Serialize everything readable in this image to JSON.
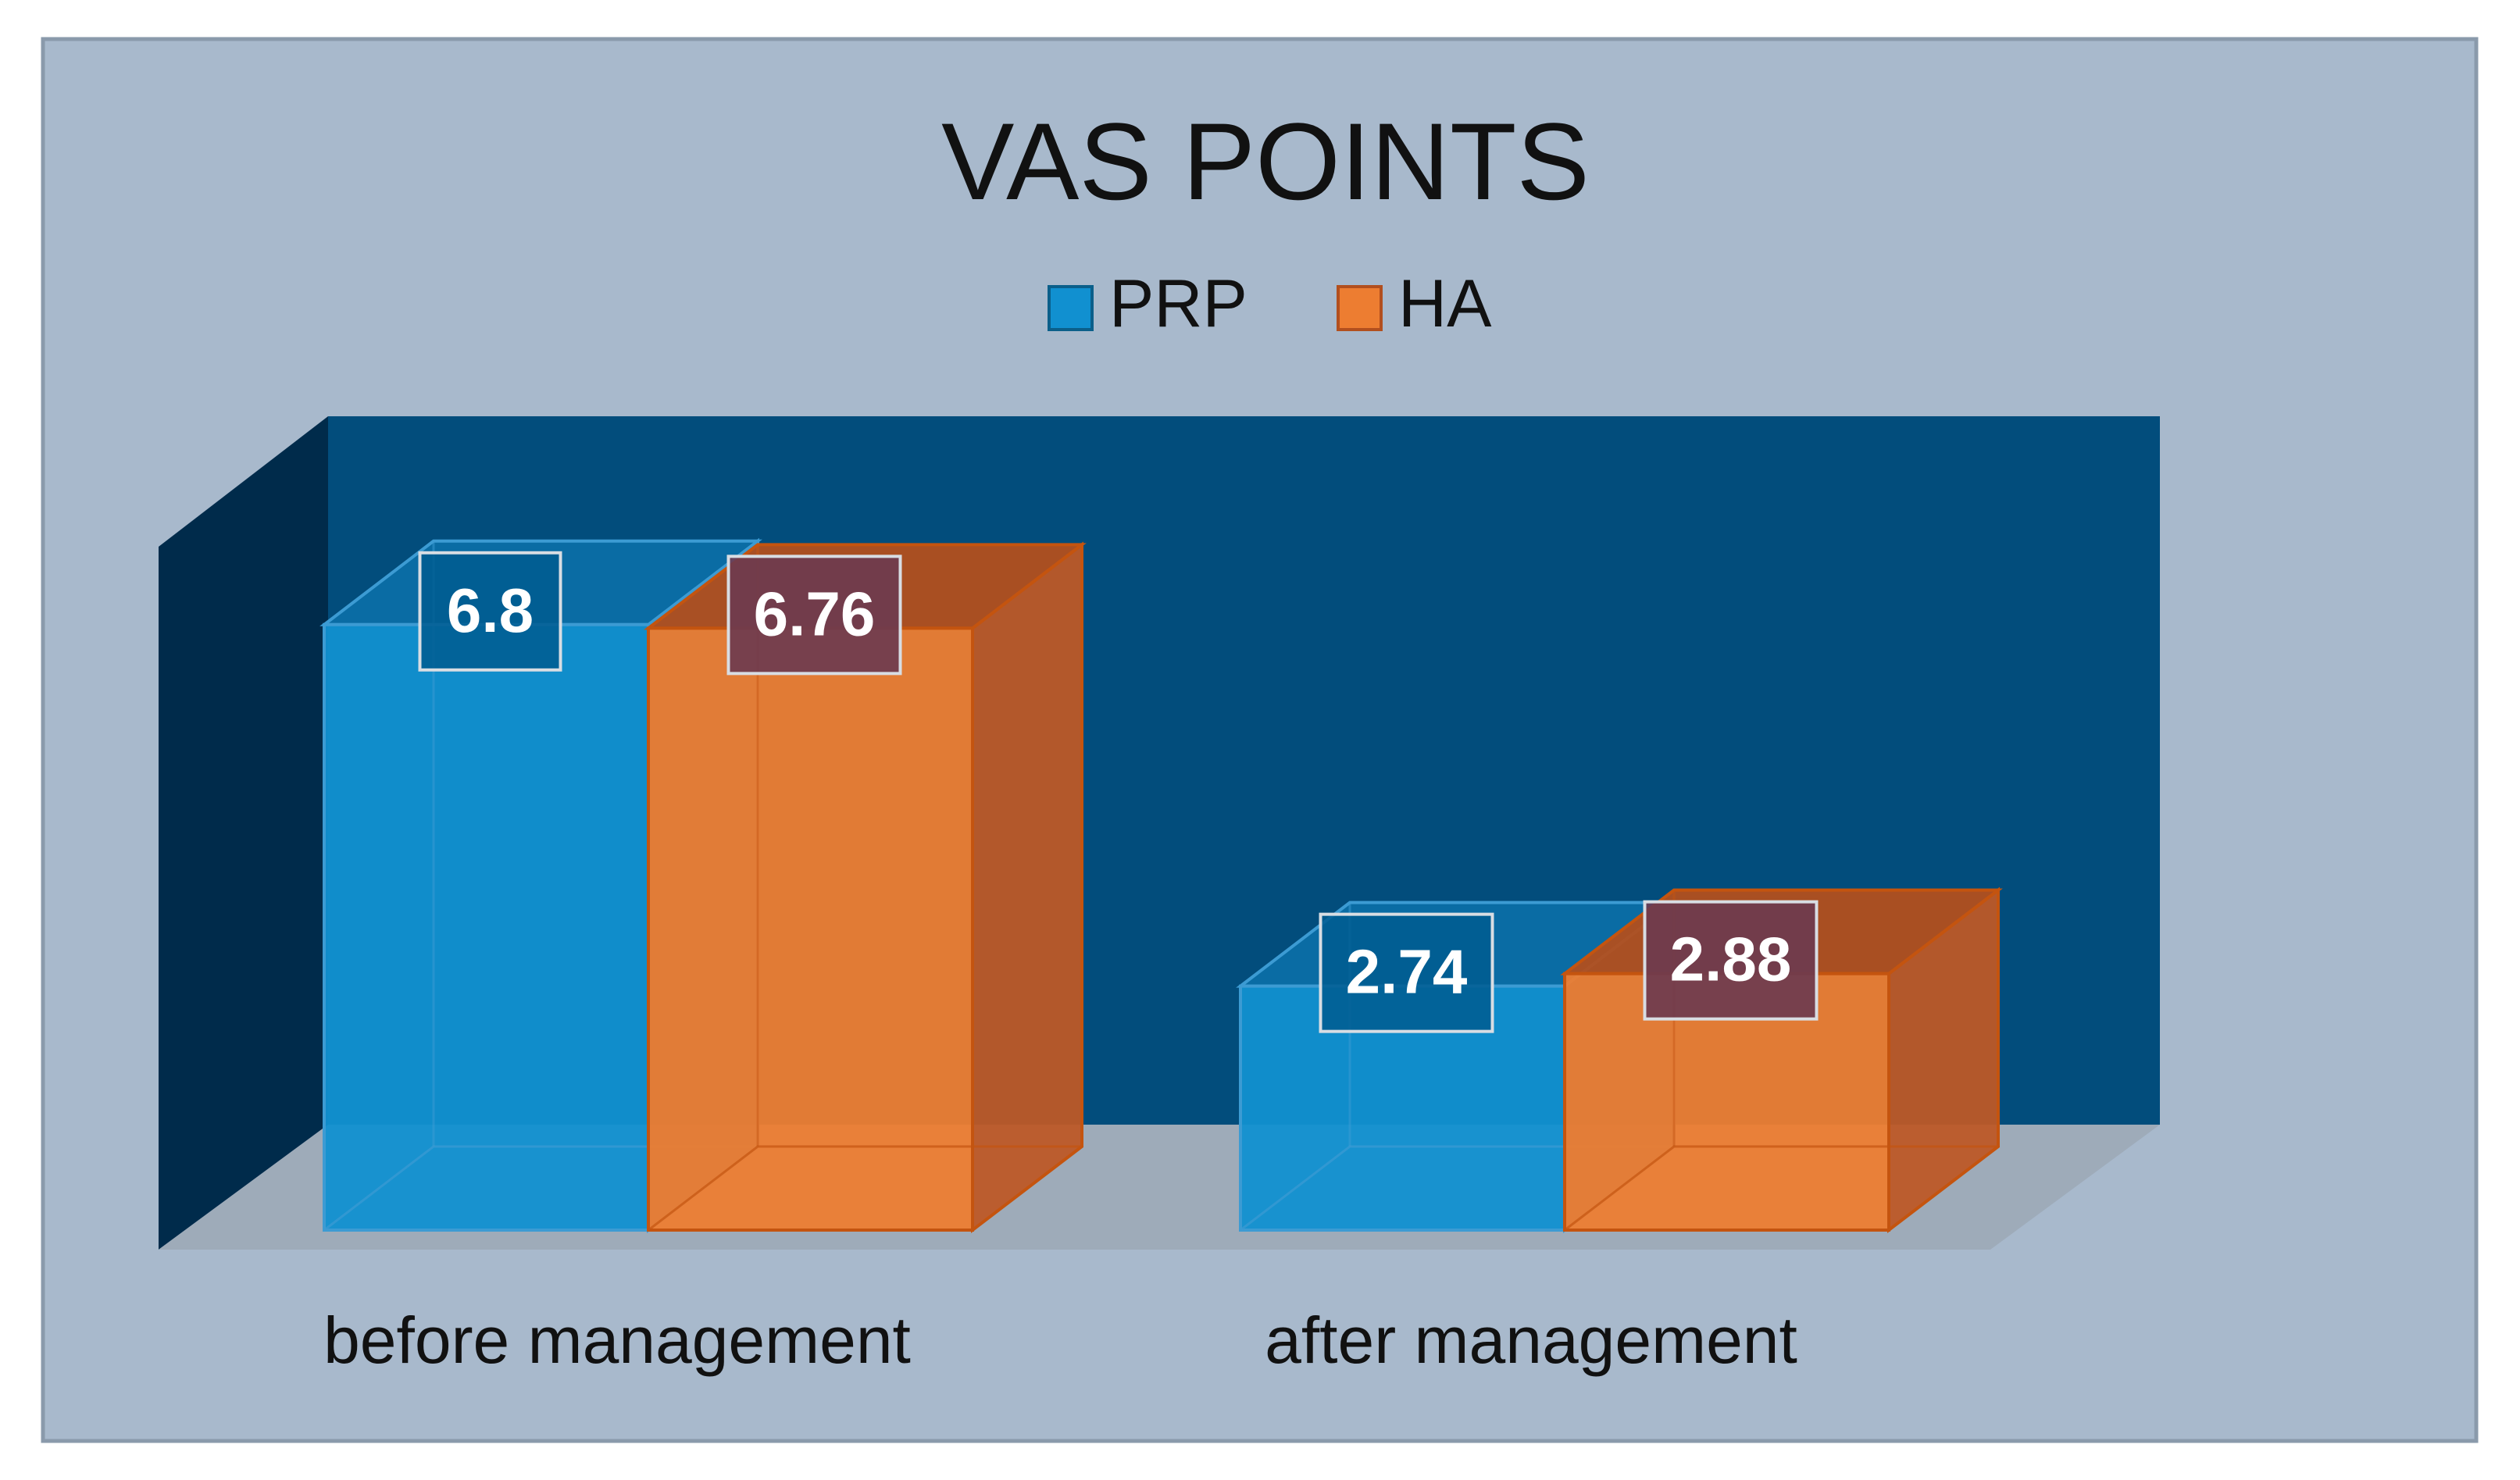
{
  "chart_data": {
    "type": "bar",
    "title": "VAS POINTS",
    "categories": [
      "before management",
      "after management"
    ],
    "series": [
      {
        "name": "PRP",
        "values": [
          6.8,
          2.74
        ],
        "labels": [
          "6.8",
          "2.74"
        ]
      },
      {
        "name": "HA",
        "values": [
          6.76,
          2.88
        ],
        "labels": [
          "6.76",
          "2.88"
        ]
      }
    ],
    "ylim": [
      0,
      8
    ],
    "xlabel": "",
    "ylabel": "",
    "grid": false,
    "legend_position": "top-center"
  },
  "colors": {
    "background": "#a8b9cc",
    "frame_border": "#8a9aab",
    "back_wall": "#024d7c",
    "side_wall": "#002b4b",
    "floor": "#9eabb9",
    "title_text": "#111111",
    "data_label_text": "#ffffff",
    "prp_front": "#1190d0",
    "prp_top": "#0b6ea6",
    "prp_edge": "#3c9bd3",
    "ha_front": "#ed7d31",
    "ha_top": "#b24f1e",
    "ha_side": "#bd5827",
    "ha_edge": "#c4540f"
  }
}
